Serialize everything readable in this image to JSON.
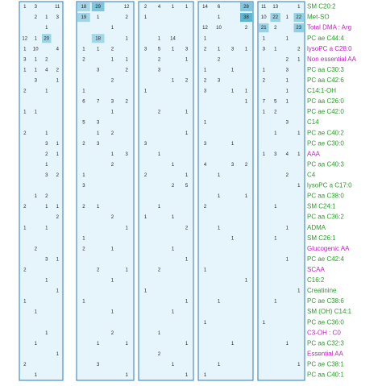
{
  "panels": [
    {
      "rows": [
        [
          1,
          3,
          null,
          11
        ],
        [
          null,
          2,
          1,
          3
        ],
        [
          null,
          null,
          1,
          null
        ],
        [
          12,
          1,
          20,
          null
        ],
        [
          1,
          10,
          null,
          4
        ],
        [
          3,
          1,
          2,
          null
        ],
        [
          1,
          1,
          4,
          2
        ],
        [
          null,
          3,
          null,
          1
        ],
        [
          2,
          null,
          1,
          null
        ],
        [
          null,
          null,
          null,
          null
        ],
        [
          1,
          1,
          null,
          null
        ],
        [
          null,
          null,
          null,
          null
        ],
        [
          2,
          null,
          1,
          null
        ],
        [
          null,
          null,
          3,
          1
        ],
        [
          null,
          null,
          2,
          1
        ],
        [
          null,
          null,
          1,
          null
        ],
        [
          null,
          null,
          3,
          2
        ],
        [
          null,
          null,
          null,
          null
        ],
        [
          null,
          1,
          2,
          null
        ],
        [
          2,
          null,
          1,
          1
        ],
        [
          null,
          null,
          null,
          2
        ],
        [
          1,
          null,
          1,
          null
        ],
        [
          null,
          null,
          null,
          null
        ],
        [
          null,
          2,
          null,
          null
        ],
        [
          null,
          null,
          3,
          1
        ],
        [
          2,
          null,
          null,
          null
        ],
        [
          null,
          null,
          1,
          null
        ],
        [
          null,
          null,
          null,
          1
        ],
        [
          1,
          null,
          null,
          null
        ],
        [
          null,
          1,
          null,
          null
        ],
        [
          null,
          null,
          null,
          null
        ],
        [
          null,
          null,
          1,
          null
        ],
        [
          null,
          1,
          null,
          null
        ],
        [
          null,
          null,
          null,
          1
        ],
        [
          2,
          null,
          null,
          null
        ],
        [
          null,
          1,
          null,
          null
        ]
      ]
    },
    {
      "rows": [
        [
          18,
          29,
          null,
          12
        ],
        [
          19,
          1,
          null,
          2
        ],
        [
          null,
          null,
          1,
          null
        ],
        [
          null,
          18,
          null,
          1
        ],
        [
          1,
          1,
          2,
          null
        ],
        [
          2,
          null,
          1,
          1
        ],
        [
          null,
          3,
          null,
          2
        ],
        [
          null,
          null,
          2,
          null
        ],
        [
          1,
          null,
          null,
          null
        ],
        [
          6,
          7,
          3,
          2
        ],
        [
          null,
          null,
          1,
          null
        ],
        [
          5,
          3,
          null,
          null
        ],
        [
          null,
          1,
          2,
          null
        ],
        [
          2,
          3,
          null,
          null
        ],
        [
          null,
          null,
          1,
          3
        ],
        [
          null,
          null,
          2,
          null
        ],
        [
          1,
          null,
          null,
          null
        ],
        [
          3,
          null,
          null,
          null
        ],
        [
          null,
          null,
          null,
          null
        ],
        [
          2,
          1,
          null,
          null
        ],
        [
          null,
          null,
          2,
          null
        ],
        [
          null,
          null,
          null,
          1
        ],
        [
          1,
          null,
          null,
          null
        ],
        [
          2,
          null,
          1,
          null
        ],
        [
          null,
          null,
          null,
          null
        ],
        [
          null,
          2,
          null,
          1
        ],
        [
          null,
          null,
          1,
          null
        ],
        [
          null,
          null,
          null,
          null
        ],
        [
          1,
          null,
          null,
          null
        ],
        [
          null,
          null,
          1,
          null
        ],
        [
          null,
          null,
          null,
          null
        ],
        [
          null,
          null,
          2,
          null
        ],
        [
          null,
          1,
          null,
          1
        ],
        [
          null,
          null,
          null,
          null
        ],
        [
          null,
          3,
          null,
          null
        ],
        [
          null,
          null,
          null,
          1
        ]
      ]
    },
    {
      "rows": [
        [
          2,
          4,
          1,
          1
        ],
        [
          1,
          null,
          null,
          null
        ],
        [
          null,
          null,
          null,
          null
        ],
        [
          null,
          1,
          14,
          null
        ],
        [
          3,
          5,
          1,
          3
        ],
        [
          null,
          2,
          null,
          1
        ],
        [
          null,
          3,
          null,
          null
        ],
        [
          null,
          null,
          1,
          2
        ],
        [
          1,
          null,
          null,
          null
        ],
        [
          null,
          null,
          null,
          null
        ],
        [
          null,
          2,
          null,
          1
        ],
        [
          null,
          null,
          null,
          null
        ],
        [
          null,
          null,
          null,
          1
        ],
        [
          3,
          null,
          null,
          null
        ],
        [
          null,
          1,
          null,
          null
        ],
        [
          null,
          null,
          1,
          null
        ],
        [
          2,
          null,
          null,
          1
        ],
        [
          null,
          null,
          2,
          5
        ],
        [
          null,
          null,
          null,
          null
        ],
        [
          null,
          1,
          null,
          null
        ],
        [
          1,
          null,
          1,
          null
        ],
        [
          null,
          null,
          null,
          2
        ],
        [
          null,
          null,
          null,
          null
        ],
        [
          null,
          null,
          1,
          null
        ],
        [
          null,
          null,
          null,
          1
        ],
        [
          null,
          2,
          null,
          null
        ],
        [
          null,
          null,
          null,
          null
        ],
        [
          1,
          null,
          null,
          null
        ],
        [
          null,
          null,
          null,
          1
        ],
        [
          null,
          null,
          1,
          null
        ],
        [
          null,
          null,
          null,
          null
        ],
        [
          null,
          1,
          null,
          null
        ],
        [
          null,
          null,
          null,
          1
        ],
        [
          null,
          2,
          null,
          null
        ],
        [
          null,
          null,
          1,
          null
        ],
        [
          null,
          null,
          null,
          1
        ]
      ]
    },
    {
      "rows": [
        [
          14,
          6,
          null,
          28
        ],
        [
          null,
          1,
          null,
          38
        ],
        [
          12,
          10,
          null,
          2
        ],
        [
          1,
          null,
          null,
          null
        ],
        [
          2,
          1,
          3,
          1
        ],
        [
          null,
          2,
          null,
          null
        ],
        [
          1,
          null,
          1,
          null
        ],
        [
          2,
          3,
          null,
          null
        ],
        [
          3,
          null,
          1,
          1
        ],
        [
          null,
          null,
          null,
          1
        ],
        [
          null,
          null,
          null,
          null
        ],
        [
          1,
          null,
          null,
          null
        ],
        [
          null,
          null,
          null,
          null
        ],
        [
          3,
          null,
          1,
          null
        ],
        [
          null,
          null,
          null,
          null
        ],
        [
          4,
          null,
          3,
          2
        ],
        [
          null,
          1,
          null,
          null
        ],
        [
          null,
          null,
          null,
          null
        ],
        [
          null,
          1,
          null,
          1
        ],
        [
          2,
          null,
          null,
          null
        ],
        [
          null,
          null,
          null,
          null
        ],
        [
          null,
          1,
          null,
          null
        ],
        [
          null,
          null,
          1,
          null
        ],
        [
          null,
          null,
          null,
          null
        ],
        [
          null,
          null,
          null,
          null
        ],
        [
          1,
          null,
          null,
          null
        ],
        [
          null,
          null,
          null,
          1
        ],
        [
          null,
          null,
          null,
          null
        ],
        [
          null,
          1,
          null,
          null
        ],
        [
          null,
          null,
          null,
          null
        ],
        [
          1,
          null,
          null,
          null
        ],
        [
          null,
          null,
          null,
          null
        ],
        [
          null,
          null,
          1,
          null
        ],
        [
          null,
          null,
          null,
          null
        ],
        [
          null,
          1,
          null,
          null
        ],
        [
          1,
          null,
          null,
          null
        ]
      ]
    },
    {
      "rows": [
        [
          11,
          13,
          null,
          1
        ],
        [
          10,
          22,
          1,
          22
        ],
        [
          21,
          2,
          null,
          23
        ],
        [
          1,
          null,
          1,
          null
        ],
        [
          3,
          1,
          null,
          2
        ],
        [
          null,
          null,
          2,
          1
        ],
        [
          1,
          null,
          3,
          null
        ],
        [
          2,
          null,
          1,
          null
        ],
        [
          null,
          null,
          1,
          null
        ],
        [
          7,
          5,
          1,
          null
        ],
        [
          1,
          2,
          null,
          null
        ],
        [
          null,
          null,
          3,
          null
        ],
        [
          null,
          1,
          null,
          1
        ],
        [
          null,
          null,
          null,
          null
        ],
        [
          1,
          3,
          4,
          1
        ],
        [
          null,
          null,
          null,
          null
        ],
        [
          null,
          null,
          2,
          null
        ],
        [
          null,
          null,
          null,
          1
        ],
        [
          null,
          null,
          null,
          null
        ],
        [
          null,
          1,
          null,
          null
        ],
        [
          null,
          null,
          null,
          null
        ],
        [
          null,
          null,
          1,
          null
        ],
        [
          null,
          1,
          null,
          null
        ],
        [
          null,
          null,
          null,
          null
        ],
        [
          null,
          null,
          1,
          null
        ],
        [
          null,
          null,
          null,
          null
        ],
        [
          null,
          null,
          null,
          null
        ],
        [
          null,
          null,
          null,
          1
        ],
        [
          null,
          1,
          null,
          null
        ],
        [
          null,
          null,
          null,
          null
        ],
        [
          1,
          null,
          null,
          null
        ],
        [
          null,
          null,
          null,
          null
        ],
        [
          null,
          null,
          1,
          null
        ],
        [
          null,
          null,
          null,
          null
        ],
        [
          null,
          null,
          null,
          1
        ],
        [
          null,
          null,
          null,
          null
        ]
      ]
    }
  ],
  "labels": [
    {
      "text": "SM C20:2",
      "color": "#2a9a2a"
    },
    {
      "text": "Met-SO",
      "color": "#2a9a2a"
    },
    {
      "text": "Total DMA : Arg",
      "color": "#c020c0"
    },
    {
      "text": "PC ae C44:4",
      "color": "#2a9a2a"
    },
    {
      "text": "lysoPC a C28:0",
      "color": "#c020c0"
    },
    {
      "text": "Non essential AA",
      "color": "#c020c0"
    },
    {
      "text": "PC aa C30:3",
      "color": "#2a9a2a"
    },
    {
      "text": "PC aa C42:6",
      "color": "#2a9a2a"
    },
    {
      "text": "C14:1-OH",
      "color": "#2a9a2a"
    },
    {
      "text": "PC aa C26:0",
      "color": "#2a9a2a"
    },
    {
      "text": "PC ae C42:0",
      "color": "#2a9a2a"
    },
    {
      "text": "C14",
      "color": "#2a9a2a"
    },
    {
      "text": "PC ae C40:2",
      "color": "#2a9a2a"
    },
    {
      "text": "PC ae C30:0",
      "color": "#2a9a2a"
    },
    {
      "text": "AAA",
      "color": "#c020c0"
    },
    {
      "text": "PC aa C40:3",
      "color": "#2a9a2a"
    },
    {
      "text": "C4",
      "color": "#2a9a2a"
    },
    {
      "text": "lysoPC a C17:0",
      "color": "#2a9a2a"
    },
    {
      "text": "PC aa C38:0",
      "color": "#2a9a2a"
    },
    {
      "text": "SM C24:1",
      "color": "#2a9a2a"
    },
    {
      "text": "PC aa C36:2",
      "color": "#2a9a2a"
    },
    {
      "text": "ADMA",
      "color": "#2a9a2a"
    },
    {
      "text": "SM C26:1",
      "color": "#2a9a2a"
    },
    {
      "text": "Glucogenic AA",
      "color": "#c020c0"
    },
    {
      "text": "PC ae C42:4",
      "color": "#2a9a2a"
    },
    {
      "text": "SCAA",
      "color": "#c020c0"
    },
    {
      "text": "C16:2",
      "color": "#2a9a2a"
    },
    {
      "text": "Creatinine",
      "color": "#2a9a2a"
    },
    {
      "text": "PC ae C38:6",
      "color": "#2a9a2a"
    },
    {
      "text": "SM (OH) C14:1",
      "color": "#2a9a2a"
    },
    {
      "text": "PC ae C36:0",
      "color": "#2a9a2a"
    },
    {
      "text": "C3-OH : C0",
      "color": "#c020c0"
    },
    {
      "text": "PC aa C32:3",
      "color": "#2a9a2a"
    },
    {
      "text": "Essential AA",
      "color": "#c020c0"
    },
    {
      "text": "PC ae C38:1",
      "color": "#2a9a2a"
    },
    {
      "text": "PC aa C40:1",
      "color": "#2a9a2a"
    }
  ]
}
